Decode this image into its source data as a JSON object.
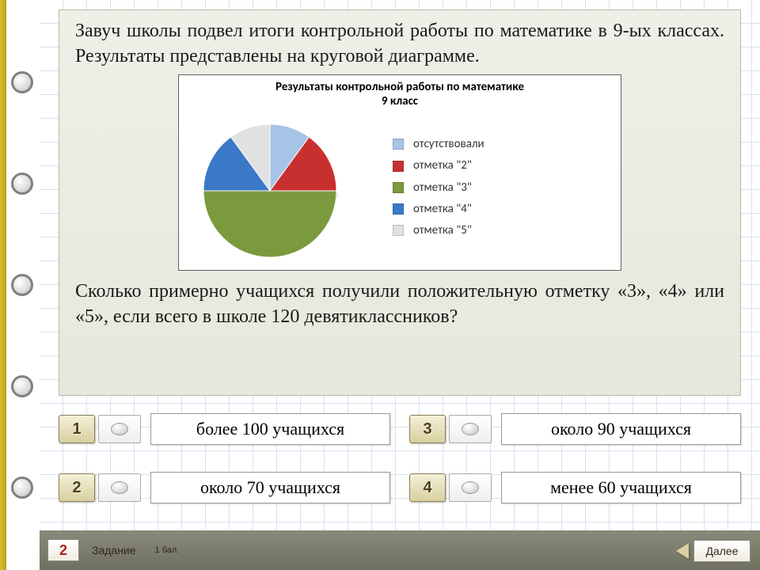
{
  "spiral": {
    "ring_count": 5
  },
  "question": {
    "para1": "Завуч школы подвел итоги контрольной работы по математике в 9-ых классах. Результаты представлены на круговой диаграмме.",
    "para2": "Сколько примерно учащихся получили положительную отметку «3», «4» или «5», если всего в школе 120 девятиклассников?"
  },
  "chart": {
    "title_line1": "Результаты контрольной работы по математике",
    "title_line2": "9 класс",
    "type": "pie",
    "start_angle_deg": -90,
    "slices": [
      {
        "label": "отсутствовали",
        "value": 10,
        "color": "#a7c4e6"
      },
      {
        "label": "отметка \"2\"",
        "value": 15,
        "color": "#c83030"
      },
      {
        "label": "отметка \"3\"",
        "value": 50,
        "color": "#7b9a3e"
      },
      {
        "label": "отметка \"4\"",
        "value": 15,
        "color": "#3a78c8"
      },
      {
        "label": "отметка \"5\"",
        "value": 10,
        "color": "#e1e1e1"
      }
    ],
    "radius": 84,
    "stroke": "#ffffff",
    "stroke_width": 1,
    "legend_swatch_size": 14,
    "legend_fontsize": 15,
    "title_fontsize": 15,
    "background_color": "#ffffff"
  },
  "answers": [
    {
      "num": "1",
      "text": "более 100 учащихся"
    },
    {
      "num": "2",
      "text": "около 70 учащихся"
    },
    {
      "num": "3",
      "text": "около 90 учащихся"
    },
    {
      "num": "4",
      "text": "менее 60 учащихся"
    }
  ],
  "footer": {
    "question_number": "2",
    "task_label": "Задание",
    "points_label": "1 бал.",
    "next_label": "Далее"
  },
  "colors": {
    "card_bg_top": "#eef0e8",
    "card_bg_bottom": "#e6e8dc",
    "footer_bg_top": "#8a8a7a",
    "footer_bg_bottom": "#707060",
    "grid_line": "#d8e0f0"
  }
}
